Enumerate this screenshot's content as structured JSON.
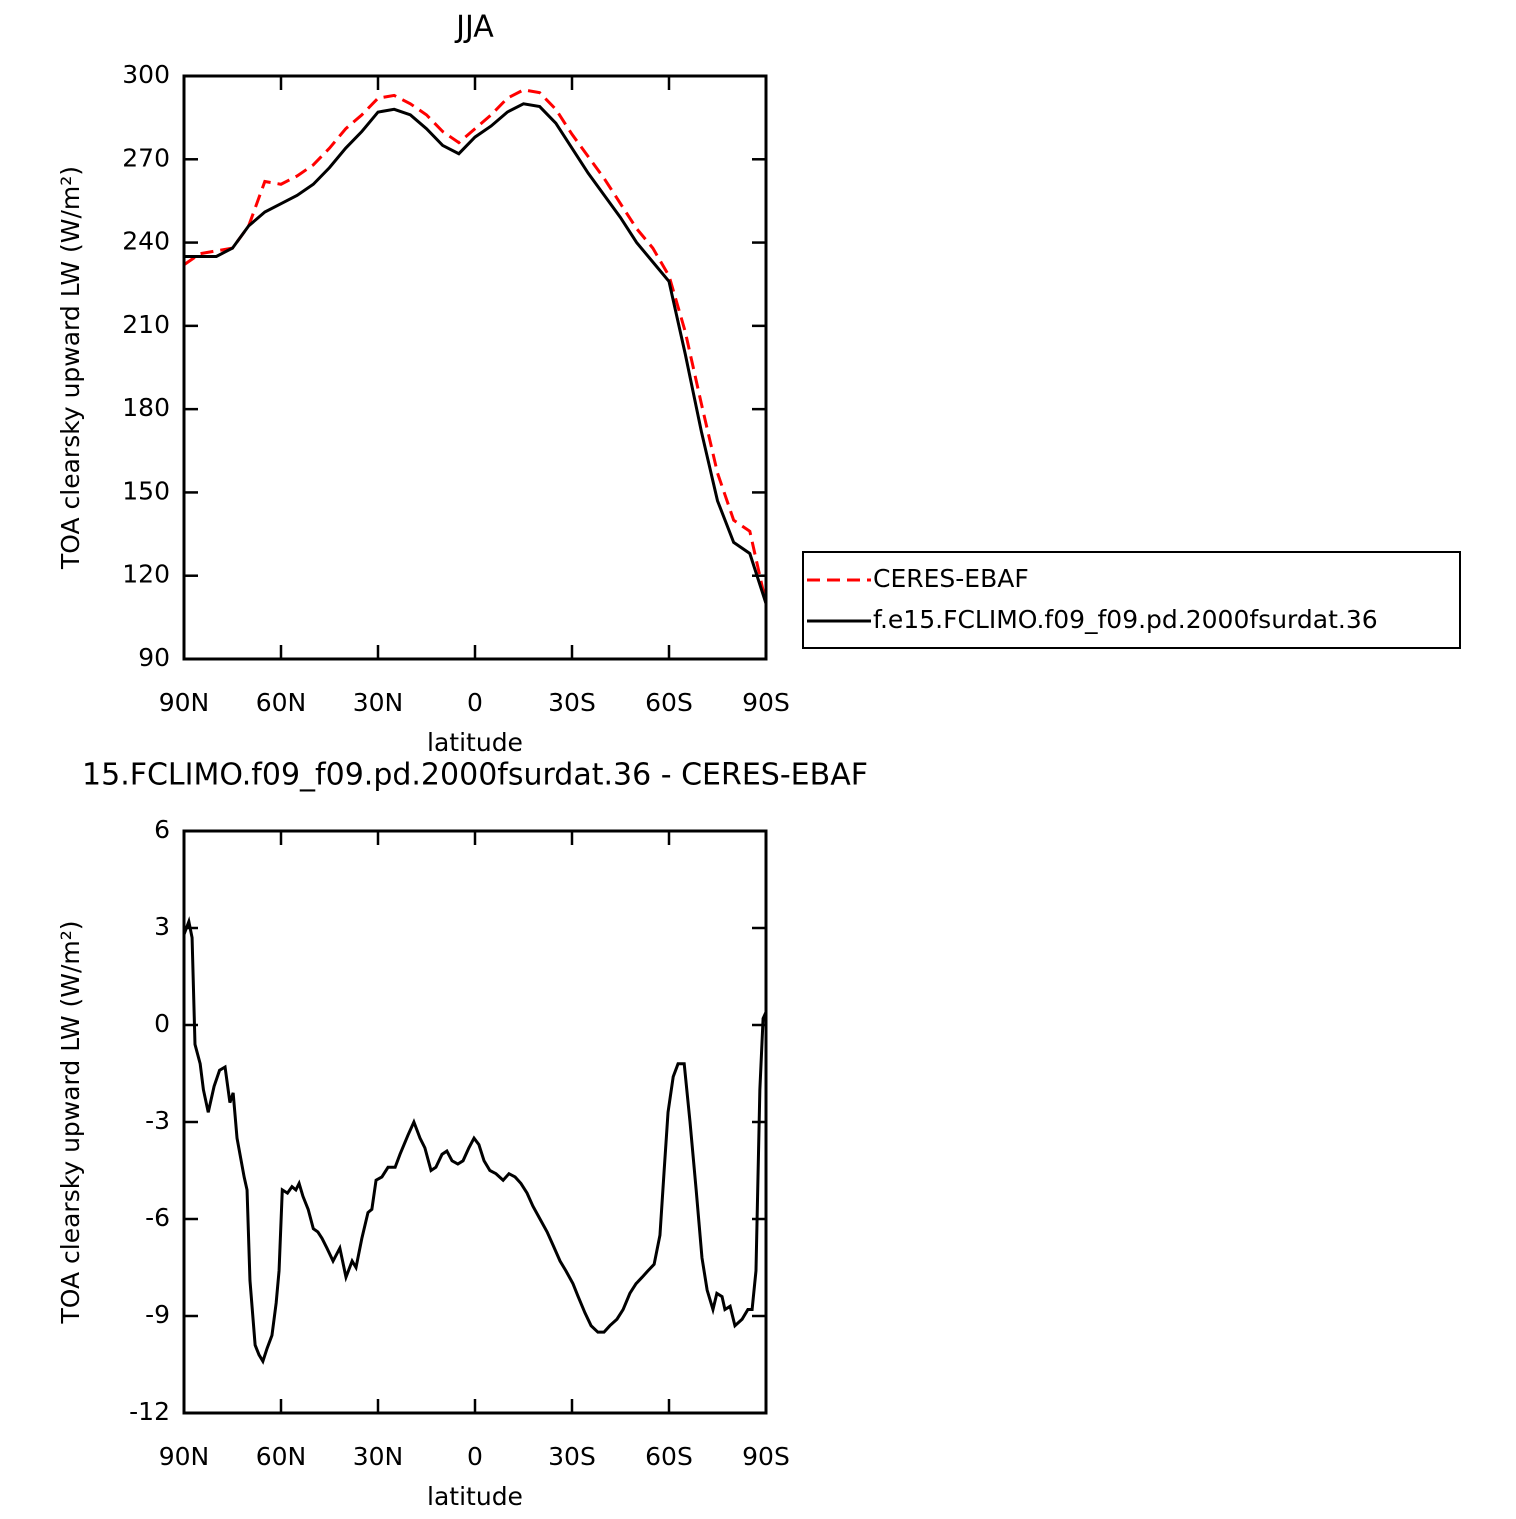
{
  "chart_data": [
    {
      "type": "line",
      "title": "JJA",
      "x_label": "latitude",
      "y_label": "TOA clearsky upward LW (W/m²)",
      "x": [
        90,
        85,
        80,
        75,
        70,
        65,
        60,
        55,
        50,
        45,
        40,
        35,
        30,
        25,
        20,
        15,
        10,
        5,
        0,
        -5,
        -10,
        -15,
        -20,
        -25,
        -30,
        -35,
        -40,
        -45,
        -50,
        -55,
        -60,
        -65,
        -70,
        -75,
        -80,
        -85,
        -90
      ],
      "series": [
        {
          "name": "CERES-EBAF",
          "color": "#ff0000",
          "dashed": true,
          "values": [
            232,
            236,
            237,
            238,
            246,
            262,
            261,
            264,
            268,
            274,
            281,
            286,
            292,
            293,
            290,
            286,
            280,
            276,
            281,
            286,
            292,
            295,
            294,
            288,
            279,
            271,
            263,
            254,
            245,
            238,
            228,
            208,
            182,
            157,
            140,
            136,
            110
          ]
        },
        {
          "name": "f.e15.FCLIMO.f09_f09.pd.2000fsurdat.36",
          "color": "#000000",
          "dashed": false,
          "values": [
            235,
            235,
            235,
            238,
            246,
            251,
            254,
            257,
            261,
            267,
            274,
            280,
            287,
            288,
            286,
            281,
            275,
            272,
            278,
            282,
            287,
            290,
            289,
            283,
            274,
            265,
            257,
            249,
            240,
            233,
            226,
            200,
            172,
            147,
            132,
            128,
            110
          ]
        }
      ],
      "xlim": [
        90,
        -90
      ],
      "xticks": [
        {
          "value": 90,
          "label": "90N"
        },
        {
          "value": 60,
          "label": "60N"
        },
        {
          "value": 30,
          "label": "30N"
        },
        0,
        {
          "value": -30,
          "label": "30S"
        },
        {
          "value": -60,
          "label": "60S"
        },
        {
          "value": -90,
          "label": "90S"
        }
      ],
      "ylim": [
        90,
        300
      ],
      "yticks": [
        90,
        120,
        150,
        180,
        210,
        240,
        270,
        300
      ],
      "legend": "right"
    },
    {
      "type": "line",
      "title": "15.FCLIMO.f09_f09.pd.2000fsurdat.36 - CERES-EBAF",
      "x_label": "latitude",
      "y_label": "TOA clearsky upward LW (W/m²)",
      "x": [
        90,
        88.5,
        87.5,
        86.6,
        85,
        84,
        82.5,
        80.7,
        79,
        77.3,
        75.8,
        74.8,
        73.6,
        71.4,
        70.5,
        69.6,
        68,
        66.8,
        65.6,
        64.3,
        62.8,
        61.5,
        60.6,
        59.6,
        58,
        56.6,
        55.4,
        54.4,
        53.2,
        51.6,
        50,
        48.6,
        47.3,
        45.8,
        43.9,
        41.8,
        39.9,
        38,
        36.8,
        35,
        33.1,
        31.9,
        30.6,
        28.8,
        26.9,
        24.7,
        23.2,
        20.7,
        18.9,
        17,
        15.5,
        13.6,
        12.1,
        10.2,
        8.7,
        7.1,
        5.3,
        3.7,
        1.9,
        0.3,
        -1.2,
        -2.8,
        -4.6,
        -6.5,
        -8.7,
        -10.5,
        -12.4,
        -14.2,
        -16.1,
        -17.9,
        -20.1,
        -22.3,
        -24.1,
        -26.3,
        -28.1,
        -30.3,
        -31.9,
        -34,
        -35.9,
        -38,
        -39.9,
        -41.7,
        -43.9,
        -45.8,
        -47.9,
        -49.8,
        -51.7,
        -53.5,
        -55.4,
        -57.2,
        -58.5,
        -59.7,
        -61.3,
        -62.8,
        -64.7,
        -66.5,
        -68.4,
        -70.2,
        -71.8,
        -73.6,
        -74.8,
        -76.4,
        -77.3,
        -78.9,
        -80.4,
        -82.6,
        -84.4,
        -85.7,
        -86.9,
        -88.1,
        -89.1,
        -90
      ],
      "series": [
        {
          "color": "#000000",
          "dashed": false,
          "values": [
            2.8,
            3.2,
            2.7,
            -0.6,
            -1.2,
            -2.0,
            -2.7,
            -1.9,
            -1.4,
            -1.3,
            -2.4,
            -2.1,
            -3.5,
            -4.7,
            -5.1,
            -7.9,
            -9.9,
            -10.2,
            -10.4,
            -10.0,
            -9.6,
            -8.6,
            -7.6,
            -5.1,
            -5.2,
            -5.0,
            -5.1,
            -4.9,
            -5.3,
            -5.7,
            -6.3,
            -6.4,
            -6.6,
            -6.9,
            -7.3,
            -6.9,
            -7.8,
            -7.3,
            -7.5,
            -6.6,
            -5.8,
            -5.7,
            -4.8,
            -4.7,
            -4.4,
            -4.4,
            -4.0,
            -3.4,
            -3.0,
            -3.5,
            -3.8,
            -4.5,
            -4.4,
            -4.0,
            -3.9,
            -4.2,
            -4.3,
            -4.2,
            -3.8,
            -3.5,
            -3.7,
            -4.2,
            -4.5,
            -4.6,
            -4.8,
            -4.6,
            -4.7,
            -4.9,
            -5.2,
            -5.6,
            -6.0,
            -6.4,
            -6.8,
            -7.3,
            -7.6,
            -8.0,
            -8.4,
            -8.9,
            -9.3,
            -9.5,
            -9.5,
            -9.3,
            -9.1,
            -8.8,
            -8.3,
            -8.0,
            -7.8,
            -7.6,
            -7.4,
            -6.5,
            -4.5,
            -2.7,
            -1.6,
            -1.2,
            -1.2,
            -3.0,
            -5.1,
            -7.2,
            -8.2,
            -8.8,
            -8.3,
            -8.4,
            -8.8,
            -8.7,
            -9.3,
            -9.1,
            -8.8,
            -8.8,
            -7.6,
            -2.0,
            0.2,
            0.4
          ]
        }
      ],
      "xlim": [
        90,
        -90
      ],
      "xticks": [
        {
          "value": 90,
          "label": "90N"
        },
        {
          "value": 60,
          "label": "60N"
        },
        {
          "value": 30,
          "label": "30N"
        },
        0,
        {
          "value": -30,
          "label": "30S"
        },
        {
          "value": -60,
          "label": "60S"
        },
        {
          "value": -90,
          "label": "90S"
        }
      ],
      "ylim": [
        -12,
        6
      ],
      "yticks": [
        -12,
        -9,
        -6,
        -3,
        0,
        3,
        6
      ]
    }
  ]
}
